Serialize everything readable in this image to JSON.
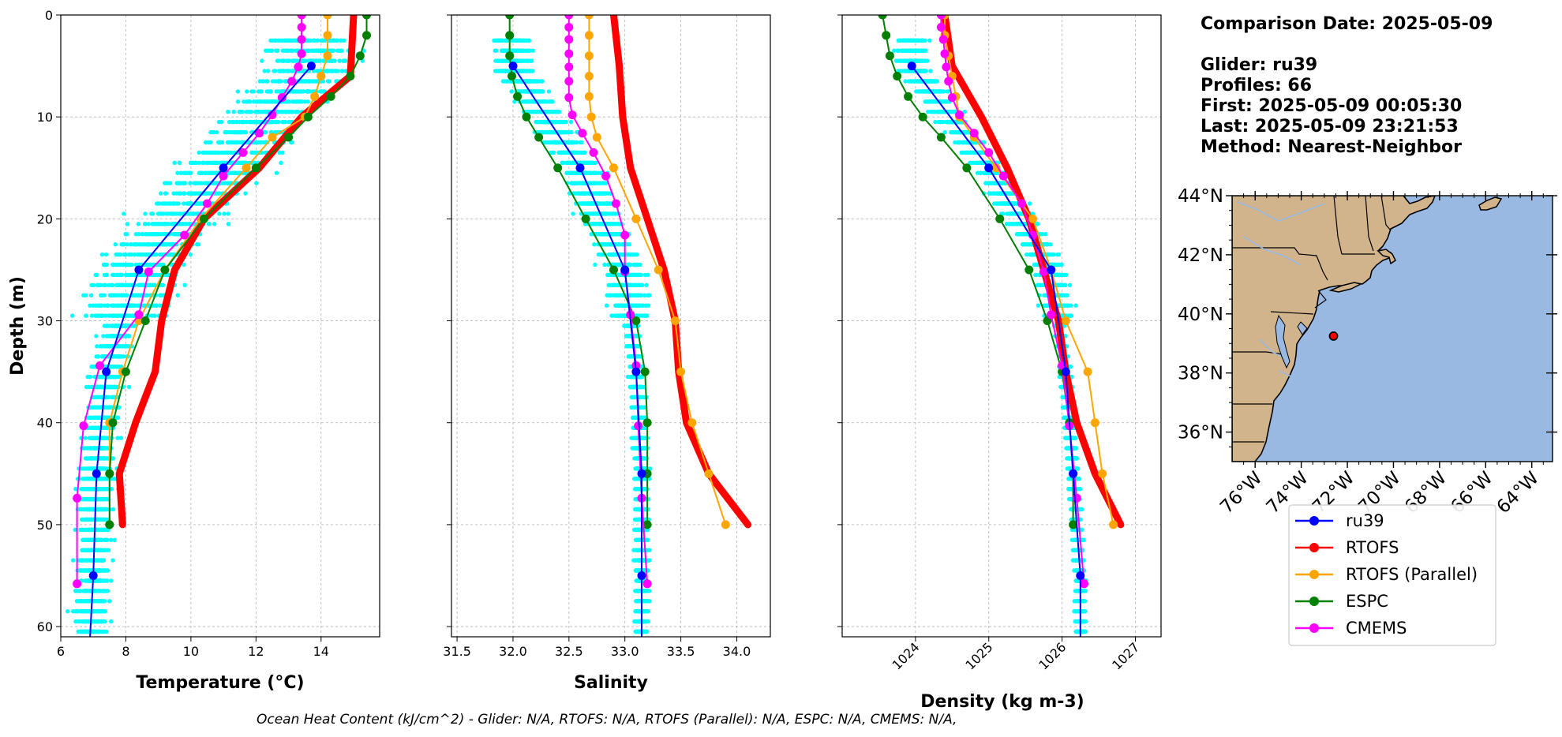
{
  "colors": {
    "ru39": "#0000ff",
    "RTOFS": "#ff0000",
    "RTOFS (Parallel)": "#ffa500",
    "ESPC": "#008000",
    "CMEMS": "#ff00ff",
    "scatter": "#00ffff",
    "land": "#d2b48c",
    "ocean": "#99b9e3"
  },
  "info": {
    "comparison_date": "Comparison Date: 2025-05-09",
    "glider": "Glider: ru39",
    "profiles": "Profiles: 66",
    "first": "First: 2025-05-09 00:05:30",
    "last": "Last: 2025-05-09 23:21:53",
    "method": "Method: Nearest-Neighbor"
  },
  "footer": "Ocean Heat Content (kJ/cm^2) - Glider: N/A,  RTOFS: N/A,  RTOFS (Parallel): N/A,  ESPC: N/A,  CMEMS: N/A,",
  "legend": [
    "ru39",
    "RTOFS",
    "RTOFS (Parallel)",
    "ESPC",
    "CMEMS"
  ],
  "chart_data": [
    {
      "type": "line",
      "xlabel": "Temperature (°C)",
      "ylabel": "Depth (m)",
      "xlim": [
        6,
        15.8
      ],
      "ylim": [
        61,
        0
      ],
      "xticks": [
        6,
        8,
        10,
        12,
        14
      ],
      "yticks": [
        0,
        10,
        20,
        30,
        40,
        50,
        60
      ],
      "grid": true,
      "series": [
        {
          "name": "ru39",
          "depth": [
            5,
            15,
            25,
            35,
            45,
            55,
            61
          ],
          "values": [
            13.7,
            11.0,
            8.4,
            7.4,
            7.1,
            7.0,
            6.9
          ],
          "markers": [
            true,
            true,
            true,
            true,
            true,
            true,
            false
          ]
        },
        {
          "name": "RTOFS",
          "depth": [
            0,
            6,
            10,
            15,
            20,
            25,
            30,
            35,
            40,
            45,
            50
          ],
          "values": [
            15.0,
            14.9,
            13.4,
            12.1,
            10.4,
            9.5,
            9.1,
            8.9,
            8.3,
            7.8,
            7.9
          ],
          "markers": false
        },
        {
          "name": "RTOFS (Parallel)",
          "depth": [
            0,
            2,
            4,
            6,
            8,
            10,
            12,
            15,
            20,
            25,
            30,
            35,
            40,
            45,
            50
          ],
          "values": [
            14.2,
            14.2,
            14.2,
            14.0,
            13.8,
            13.5,
            12.5,
            11.7,
            10.3,
            9.2,
            8.4,
            7.9,
            7.5,
            7.5,
            7.5
          ],
          "markers": true
        },
        {
          "name": "ESPC",
          "depth": [
            0,
            2,
            4,
            6,
            8,
            10,
            12,
            15,
            20,
            25,
            30,
            35,
            40,
            45,
            50
          ],
          "values": [
            15.4,
            15.4,
            15.2,
            14.9,
            14.3,
            13.6,
            13.0,
            12.0,
            10.4,
            9.2,
            8.6,
            8.0,
            7.6,
            7.5,
            7.5
          ],
          "markers": true
        },
        {
          "name": "CMEMS",
          "depth": [
            0,
            1.2,
            2.4,
            3.8,
            5.1,
            6.5,
            8.1,
            9.8,
            11.6,
            13.5,
            15.8,
            18.5,
            21.6,
            25.2,
            29.4,
            34.4,
            40.3,
            47.4,
            55.8
          ],
          "values": [
            13.4,
            13.4,
            13.4,
            13.4,
            13.3,
            13.1,
            12.8,
            12.5,
            12.1,
            11.6,
            11.0,
            10.5,
            9.8,
            8.7,
            8.4,
            7.2,
            6.7,
            6.5,
            6.5
          ],
          "markers": true
        }
      ]
    },
    {
      "type": "line",
      "xlabel": "Salinity",
      "ylabel": "",
      "xlim": [
        31.45,
        34.3
      ],
      "ylim": [
        61,
        0
      ],
      "xticks": [
        31.5,
        32.0,
        32.5,
        33.0,
        33.5,
        34.0
      ],
      "yticks": [
        0,
        10,
        20,
        30,
        40,
        50,
        60
      ],
      "grid": true,
      "series": [
        {
          "name": "ru39",
          "depth": [
            5,
            15,
            25,
            35,
            45,
            55,
            61
          ],
          "values": [
            32.0,
            32.6,
            33.0,
            33.1,
            33.15,
            33.15,
            33.15
          ],
          "markers": [
            true,
            true,
            true,
            true,
            true,
            true,
            false
          ]
        },
        {
          "name": "RTOFS",
          "depth": [
            0,
            5,
            10,
            15,
            20,
            25,
            30,
            35,
            40,
            45,
            50
          ],
          "values": [
            32.9,
            32.95,
            32.98,
            33.05,
            33.2,
            33.35,
            33.45,
            33.48,
            33.55,
            33.75,
            34.1
          ],
          "markers": false
        },
        {
          "name": "RTOFS (Parallel)",
          "depth": [
            0,
            2,
            4,
            6,
            8,
            10,
            12,
            15,
            20,
            25,
            30,
            35,
            40,
            45,
            50
          ],
          "values": [
            32.68,
            32.68,
            32.68,
            32.68,
            32.68,
            32.7,
            32.75,
            32.9,
            33.1,
            33.3,
            33.45,
            33.5,
            33.6,
            33.75,
            33.9
          ],
          "markers": true
        },
        {
          "name": "ESPC",
          "depth": [
            0,
            2,
            4,
            6,
            8,
            10,
            12,
            15,
            20,
            25,
            30,
            35,
            40,
            45,
            50
          ],
          "values": [
            31.97,
            31.97,
            31.97,
            31.99,
            32.04,
            32.12,
            32.23,
            32.4,
            32.65,
            32.9,
            33.1,
            33.18,
            33.2,
            33.2,
            33.2
          ],
          "markers": true
        },
        {
          "name": "CMEMS",
          "depth": [
            0,
            1.2,
            2.4,
            3.8,
            5.1,
            6.5,
            8.1,
            9.8,
            11.6,
            13.5,
            15.8,
            18.5,
            21.6,
            25.2,
            29.4,
            34.4,
            40.3,
            47.4,
            55.8
          ],
          "values": [
            32.5,
            32.5,
            32.5,
            32.5,
            32.5,
            32.5,
            32.5,
            32.53,
            32.62,
            32.72,
            32.83,
            32.92,
            33.0,
            33.0,
            33.05,
            33.1,
            33.12,
            33.15,
            33.2
          ],
          "markers": true
        }
      ]
    },
    {
      "type": "line",
      "xlabel": "Density (kg m-3)",
      "ylabel": "",
      "xlim": [
        1023.0,
        1027.35
      ],
      "ylim": [
        61,
        0
      ],
      "xticks": [
        1024,
        1025,
        1026,
        1027
      ],
      "yticks": [
        0,
        10,
        20,
        30,
        40,
        50,
        60
      ],
      "grid": true,
      "series": [
        {
          "name": "ru39",
          "depth": [
            5,
            15,
            25,
            35,
            45,
            55,
            61
          ],
          "values": [
            1023.95,
            1025.0,
            1025.85,
            1026.05,
            1026.15,
            1026.25,
            1026.25
          ],
          "markers": [
            true,
            true,
            true,
            true,
            true,
            true,
            false
          ]
        },
        {
          "name": "RTOFS",
          "depth": [
            0,
            5,
            10,
            15,
            20,
            25,
            30,
            35,
            40,
            45,
            50
          ],
          "values": [
            1024.4,
            1024.5,
            1024.9,
            1025.25,
            1025.55,
            1025.75,
            1025.95,
            1026.05,
            1026.2,
            1026.45,
            1026.8
          ],
          "markers": false
        },
        {
          "name": "RTOFS (Parallel)",
          "depth": [
            0,
            2,
            4,
            6,
            8,
            10,
            12,
            15,
            20,
            25,
            30,
            35,
            40,
            45,
            50
          ],
          "values": [
            1024.4,
            1024.4,
            1024.45,
            1024.5,
            1024.55,
            1024.6,
            1024.8,
            1025.1,
            1025.6,
            1025.85,
            1026.05,
            1026.35,
            1026.45,
            1026.55,
            1026.7
          ],
          "markers": true
        },
        {
          "name": "ESPC",
          "depth": [
            0,
            2,
            4,
            6,
            8,
            10,
            12,
            15,
            20,
            25,
            30,
            35,
            40,
            45,
            50
          ],
          "values": [
            1023.55,
            1023.6,
            1023.65,
            1023.75,
            1023.9,
            1024.1,
            1024.35,
            1024.7,
            1025.15,
            1025.55,
            1025.8,
            1026.0,
            1026.1,
            1026.15,
            1026.15
          ],
          "markers": true
        },
        {
          "name": "CMEMS",
          "depth": [
            0,
            1.2,
            2.4,
            3.8,
            5.1,
            6.5,
            8.1,
            9.8,
            11.6,
            13.5,
            15.8,
            18.5,
            21.6,
            25.2,
            29.4,
            34.4,
            40.3,
            47.4,
            55.8
          ],
          "values": [
            1024.35,
            1024.35,
            1024.38,
            1024.4,
            1024.42,
            1024.45,
            1024.5,
            1024.6,
            1024.8,
            1025.0,
            1025.2,
            1025.45,
            1025.6,
            1025.75,
            1025.85,
            1026.0,
            1026.1,
            1026.2,
            1026.3
          ],
          "markers": true
        }
      ]
    }
  ],
  "map": {
    "lat_ticks": [
      "44°N",
      "42°N",
      "40°N",
      "38°N",
      "36°N"
    ],
    "lon_ticks": [
      "76°W",
      "74°W",
      "72°W",
      "70°W",
      "68°W",
      "66°W",
      "64°W"
    ],
    "glider_position": [
      -72.6,
      39.25
    ]
  }
}
